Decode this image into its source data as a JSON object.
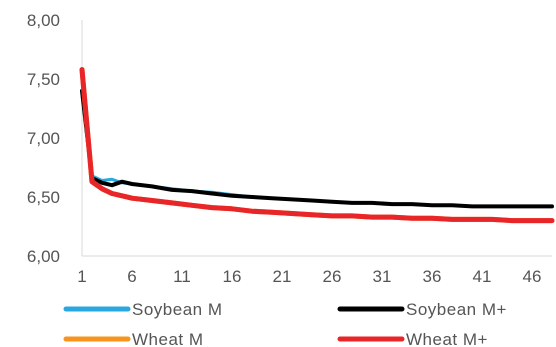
{
  "chart_data": {
    "type": "line",
    "title": "",
    "xlabel": "",
    "ylabel": "",
    "ylim": [
      6.0,
      8.0
    ],
    "xlim": [
      1,
      48
    ],
    "y_ticks": [
      6.0,
      6.5,
      7.0,
      7.5,
      8.0
    ],
    "y_tick_labels": [
      "6,00",
      "6,50",
      "7,00",
      "7,50",
      "8,00"
    ],
    "x_ticks": [
      1,
      6,
      11,
      16,
      21,
      26,
      31,
      36,
      41,
      46
    ],
    "x_tick_labels": [
      "1",
      "6",
      "11",
      "16",
      "21",
      "26",
      "31",
      "36",
      "41",
      "46"
    ],
    "grid": false,
    "legend_position": "bottom",
    "series": [
      {
        "name": "Soybean M",
        "color": "#29a8e0",
        "x": [
          1,
          2,
          3,
          4,
          5,
          6,
          8,
          10,
          12,
          14,
          16,
          18,
          20,
          22,
          24,
          26,
          28,
          30,
          32,
          34,
          36,
          38,
          40,
          42,
          44,
          46,
          48
        ],
        "values": [
          7.38,
          6.68,
          6.64,
          6.65,
          6.62,
          6.61,
          6.59,
          6.57,
          6.55,
          6.54,
          6.52,
          6.5,
          6.49,
          6.48,
          6.47,
          6.46,
          6.45,
          6.45,
          6.44,
          6.44,
          6.43,
          6.43,
          6.42,
          6.42,
          6.42,
          6.42,
          6.42
        ]
      },
      {
        "name": "Soybean M+",
        "color": "#000000",
        "x": [
          1,
          2,
          3,
          4,
          5,
          6,
          8,
          10,
          12,
          14,
          16,
          18,
          20,
          22,
          24,
          26,
          28,
          30,
          32,
          34,
          36,
          38,
          40,
          42,
          44,
          46,
          48
        ],
        "values": [
          7.4,
          6.66,
          6.62,
          6.6,
          6.63,
          6.61,
          6.59,
          6.56,
          6.55,
          6.53,
          6.51,
          6.5,
          6.49,
          6.48,
          6.47,
          6.46,
          6.45,
          6.45,
          6.44,
          6.44,
          6.43,
          6.43,
          6.42,
          6.42,
          6.42,
          6.42,
          6.42
        ]
      },
      {
        "name": "Wheat M",
        "color": "#f7941d",
        "x": [
          1,
          2,
          3,
          4,
          5,
          6,
          8,
          10,
          12,
          14,
          16,
          18,
          20,
          22,
          24,
          26,
          28,
          30,
          32,
          34,
          36,
          38,
          40,
          42,
          44,
          46,
          48
        ],
        "values": [
          7.58,
          6.63,
          6.57,
          6.53,
          6.51,
          6.49,
          6.47,
          6.45,
          6.43,
          6.41,
          6.4,
          6.38,
          6.37,
          6.36,
          6.35,
          6.34,
          6.34,
          6.33,
          6.33,
          6.32,
          6.32,
          6.31,
          6.31,
          6.31,
          6.3,
          6.3,
          6.3
        ]
      },
      {
        "name": "Wheat M+",
        "color": "#e8262a",
        "x": [
          1,
          2,
          3,
          4,
          5,
          6,
          8,
          10,
          12,
          14,
          16,
          18,
          20,
          22,
          24,
          26,
          28,
          30,
          32,
          34,
          36,
          38,
          40,
          42,
          44,
          46,
          48
        ],
        "values": [
          7.58,
          6.63,
          6.57,
          6.53,
          6.51,
          6.49,
          6.47,
          6.45,
          6.43,
          6.41,
          6.4,
          6.38,
          6.37,
          6.36,
          6.35,
          6.34,
          6.34,
          6.33,
          6.33,
          6.32,
          6.32,
          6.31,
          6.31,
          6.31,
          6.3,
          6.3,
          6.3
        ]
      }
    ]
  }
}
